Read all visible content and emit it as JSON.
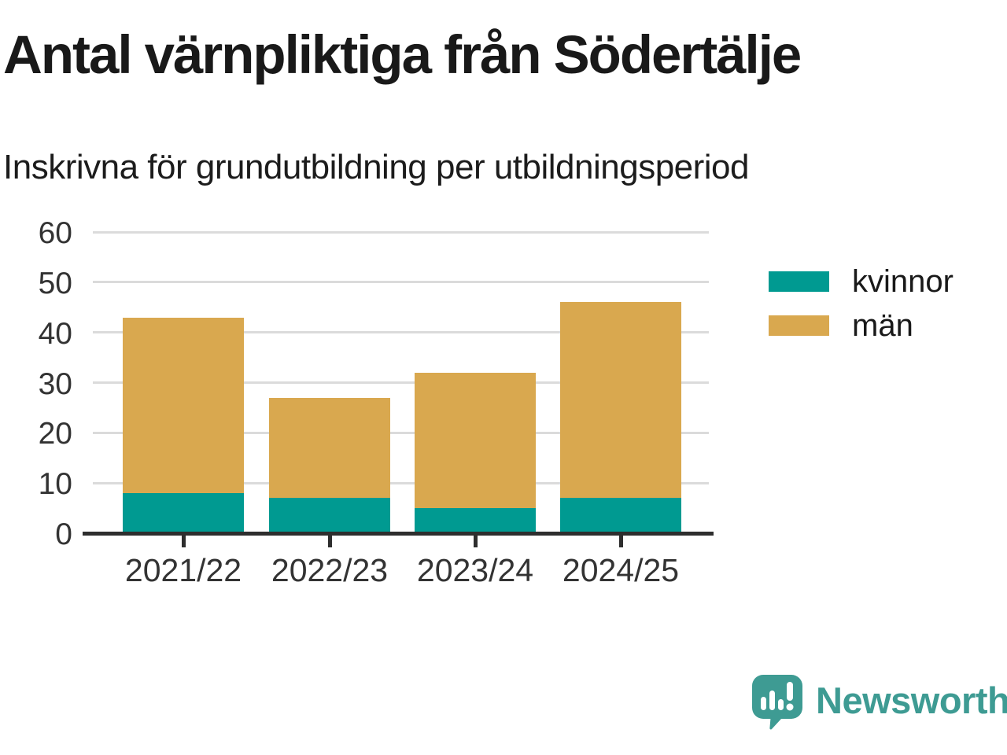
{
  "header": {
    "title": "Antal värnpliktiga från Södertälje",
    "subtitle": "Inskrivna för grundutbildning per utbildningsperiod"
  },
  "chart_data": {
    "type": "bar",
    "stacked": true,
    "title": "Antal värnpliktiga från Södertälje",
    "subtitle": "Inskrivna för grundutbildning per utbildningsperiod",
    "categories": [
      "2021/22",
      "2022/23",
      "2023/24",
      "2024/25"
    ],
    "series": [
      {
        "name": "kvinnor",
        "color": "#009A91",
        "values": [
          8,
          7,
          5,
          7
        ]
      },
      {
        "name": "män",
        "color": "#D9A84F",
        "values": [
          35,
          20,
          27,
          39
        ]
      }
    ],
    "totals": [
      43,
      27,
      32,
      46
    ],
    "xlabel": "",
    "ylabel": "",
    "ylim": [
      0,
      60
    ],
    "yticks": [
      0,
      10,
      20,
      30,
      40,
      50,
      60
    ],
    "grid": true,
    "legend_position": "right"
  },
  "colors": {
    "grid": "#DBDBDB",
    "axis": "#2E2E2E",
    "tick_label": "#333333",
    "title_text": "#191919"
  },
  "branding": {
    "logo_text": "Newsworthy",
    "logo_color": "#3E9B93"
  }
}
